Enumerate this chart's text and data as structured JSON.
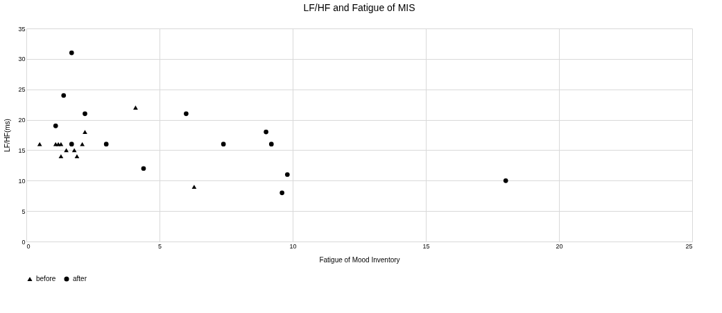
{
  "chart_data": {
    "type": "scatter",
    "title": "LF/HF and Fatigue of MIS",
    "xlabel": "Fatigue of Mood Inventory",
    "ylabel": "LF/HF(ms)",
    "series": [
      {
        "name": "before",
        "color": "#000000",
        "marker": "triangle",
        "x": [
          0.5,
          1.1,
          1.2,
          1.3,
          1.3,
          1.5,
          1.8,
          1.9,
          2.1,
          2.2,
          4.1,
          6.3
        ],
        "values": [
          16,
          16,
          16,
          16,
          14,
          15,
          15,
          14,
          16,
          18,
          22,
          9
        ]
      },
      {
        "name": "after",
        "color": "#000000",
        "marker": "circle",
        "x": [
          1.7,
          1.4,
          1.1,
          1.7,
          2.2,
          3.0,
          4.4,
          6.0,
          7.4,
          9.0,
          9.2,
          9.8,
          9.6,
          18.0
        ],
        "values": [
          31,
          24,
          19,
          16,
          21,
          16,
          12,
          21,
          16,
          18,
          16,
          11,
          8,
          10
        ]
      }
    ],
    "xlim": [
      0,
      25
    ],
    "xticks": [
      0,
      5,
      10,
      15,
      20,
      25
    ],
    "ylim": [
      0,
      35
    ],
    "yticks": [
      0,
      5,
      10,
      15,
      20,
      25,
      30,
      35
    ],
    "grid": true,
    "legend": "bottom"
  }
}
